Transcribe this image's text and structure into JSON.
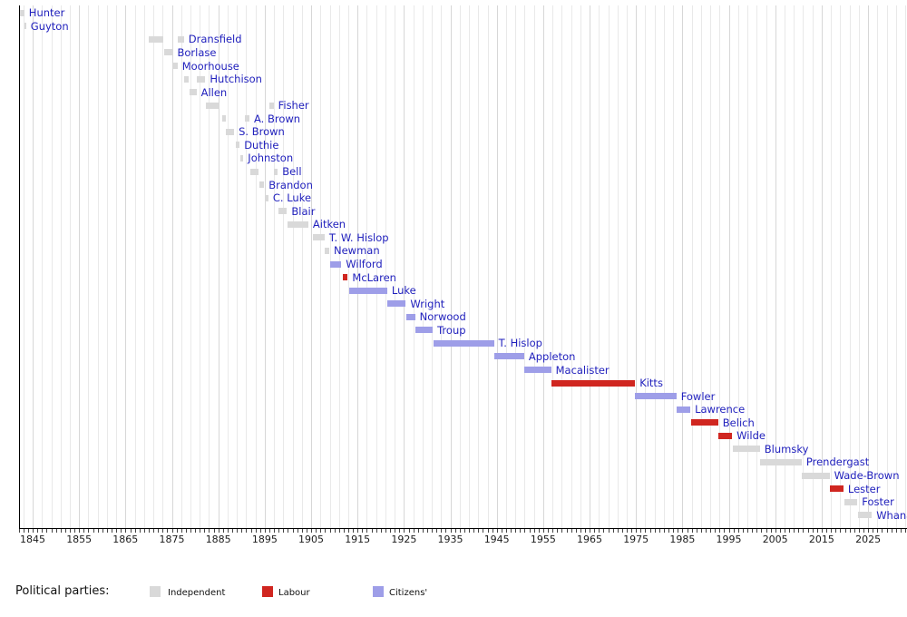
{
  "legend": {
    "title": "Political parties:",
    "items": [
      {
        "label": "Independent",
        "color": "#d9d9d9"
      },
      {
        "label": "Labour",
        "color": "#d02620"
      },
      {
        "label": "Citizens'",
        "color": "#9e9ee8"
      }
    ]
  },
  "chart_data": {
    "type": "timeline",
    "title": "",
    "xlabel": "",
    "ylabel": "",
    "axis": {
      "min_year": 1842,
      "max_year": 2033.5,
      "labeled_ticks": [
        1845,
        1855,
        1865,
        1875,
        1885,
        1895,
        1905,
        1915,
        1925,
        1935,
        1945,
        1955,
        1965,
        1975,
        1985,
        1995,
        2005,
        2015,
        2025
      ],
      "minor_tick_every_years": 1,
      "gridline_every_years": 2,
      "grid": "on",
      "legend_position": "bottom"
    },
    "parties": {
      "Independent": "#d9d9d9",
      "Labour": "#d02620",
      "Citizens'": "#9e9ee8"
    },
    "rows": [
      {
        "name": "Hunter",
        "party": "Independent",
        "terms": [
          [
            1842.2,
            1843.2
          ]
        ]
      },
      {
        "name": "Guyton",
        "party": "Independent",
        "terms": [
          [
            1843.2,
            1843.6
          ]
        ]
      },
      {
        "name": "Dransfield",
        "party": "Independent",
        "terms": [
          [
            1870.1,
            1873.2
          ],
          [
            1876.3,
            1877.6
          ]
        ]
      },
      {
        "name": "Borlase",
        "party": "Independent",
        "terms": [
          [
            1873.3,
            1875.2
          ]
        ]
      },
      {
        "name": "Moorhouse",
        "party": "Independent",
        "terms": [
          [
            1875.3,
            1876.2
          ]
        ]
      },
      {
        "name": "Hutchison",
        "party": "Independent",
        "terms": [
          [
            1877.7,
            1878.7
          ],
          [
            1880.4,
            1882.2
          ]
        ]
      },
      {
        "name": "Allen",
        "party": "Independent",
        "terms": [
          [
            1878.8,
            1880.3
          ]
        ]
      },
      {
        "name": "Fisher",
        "party": "Independent",
        "terms": [
          [
            1882.3,
            1885.3
          ],
          [
            1895.9,
            1896.9
          ]
        ]
      },
      {
        "name": "A. Brown",
        "party": "Independent",
        "terms": [
          [
            1885.9,
            1886.6
          ],
          [
            1890.8,
            1891.7
          ]
        ]
      },
      {
        "name": "S. Brown",
        "party": "Independent",
        "terms": [
          [
            1886.7,
            1888.4
          ]
        ]
      },
      {
        "name": "Duthie",
        "party": "Independent",
        "terms": [
          [
            1888.8,
            1889.6
          ]
        ]
      },
      {
        "name": "Johnston",
        "party": "Independent",
        "terms": [
          [
            1889.7,
            1890.4
          ]
        ]
      },
      {
        "name": "Bell",
        "party": "Independent",
        "terms": [
          [
            1891.9,
            1893.7
          ],
          [
            1897.0,
            1897.8
          ]
        ]
      },
      {
        "name": "Brandon",
        "party": "Independent",
        "terms": [
          [
            1893.8,
            1894.9
          ]
        ]
      },
      {
        "name": "C. Luke",
        "party": "Independent",
        "terms": [
          [
            1895.0,
            1895.8
          ]
        ]
      },
      {
        "name": "Blair",
        "party": "Independent",
        "terms": [
          [
            1897.9,
            1899.8
          ]
        ]
      },
      {
        "name": "Aitken",
        "party": "Independent",
        "terms": [
          [
            1900.0,
            1904.4
          ]
        ]
      },
      {
        "name": "T. W. Hislop",
        "party": "Independent",
        "terms": [
          [
            1905.3,
            1907.9
          ]
        ]
      },
      {
        "name": "Newman",
        "party": "Independent",
        "terms": [
          [
            1908.0,
            1908.9
          ]
        ]
      },
      {
        "name": "Wilford",
        "party": "Citizens'",
        "terms": [
          [
            1909.0,
            1911.5
          ]
        ]
      },
      {
        "name": "McLaren",
        "party": "Labour",
        "terms": [
          [
            1911.9,
            1912.9
          ]
        ]
      },
      {
        "name": "Luke",
        "party": "Citizens'",
        "terms": [
          [
            1913.1,
            1921.4
          ]
        ]
      },
      {
        "name": "Wright",
        "party": "Citizens'",
        "terms": [
          [
            1921.4,
            1925.4
          ]
        ]
      },
      {
        "name": "Norwood",
        "party": "Citizens'",
        "terms": [
          [
            1925.5,
            1927.4
          ]
        ]
      },
      {
        "name": "Troup",
        "party": "Citizens'",
        "terms": [
          [
            1927.5,
            1931.2
          ]
        ]
      },
      {
        "name": "T. Hislop",
        "party": "Citizens'",
        "terms": [
          [
            1931.4,
            1944.4
          ]
        ]
      },
      {
        "name": "Appleton",
        "party": "Citizens'",
        "terms": [
          [
            1944.5,
            1950.9
          ]
        ]
      },
      {
        "name": "Macalister",
        "party": "Citizens'",
        "terms": [
          [
            1950.9,
            1956.7
          ]
        ]
      },
      {
        "name": "Kitts",
        "party": "Labour",
        "terms": [
          [
            1956.8,
            1974.8
          ]
        ]
      },
      {
        "name": "Fowler",
        "party": "Citizens'",
        "terms": [
          [
            1974.8,
            1983.7
          ]
        ]
      },
      {
        "name": "Lawrence",
        "party": "Citizens'",
        "terms": [
          [
            1983.8,
            1986.7
          ]
        ]
      },
      {
        "name": "Belich",
        "party": "Labour",
        "terms": [
          [
            1986.8,
            1992.7
          ]
        ]
      },
      {
        "name": "Wilde",
        "party": "Labour",
        "terms": [
          [
            1992.8,
            1995.7
          ]
        ]
      },
      {
        "name": "Blumsky",
        "party": "Independent",
        "terms": [
          [
            1995.8,
            2001.7
          ]
        ]
      },
      {
        "name": "Prendergast",
        "party": "Independent",
        "terms": [
          [
            2001.8,
            2010.7
          ]
        ]
      },
      {
        "name": "Wade-Brown",
        "party": "Independent",
        "terms": [
          [
            2010.8,
            2016.7
          ]
        ]
      },
      {
        "name": "Lester",
        "party": "Labour",
        "terms": [
          [
            2016.8,
            2019.7
          ]
        ]
      },
      {
        "name": "Foster",
        "party": "Independent",
        "terms": [
          [
            2019.8,
            2022.7
          ]
        ]
      },
      {
        "name": "Whanau",
        "party": "Independent",
        "terms": [
          [
            2022.8,
            2025.8
          ]
        ]
      }
    ]
  }
}
